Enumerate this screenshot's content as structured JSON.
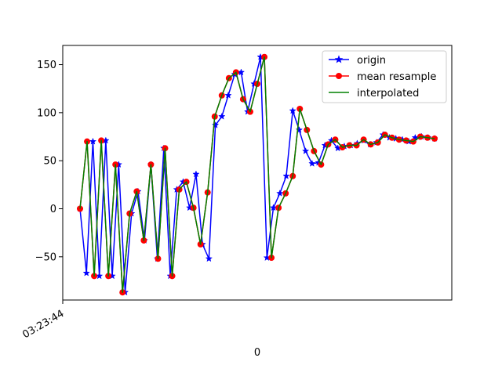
{
  "chart_data": {
    "type": "line",
    "title": "",
    "xlabel": "0",
    "ylabel": "",
    "x_tick_labels": [
      "03:23:44"
    ],
    "x_range_samples": [
      0,
      55
    ],
    "ylim": [
      -95,
      170
    ],
    "y_ticks": [
      -50,
      0,
      50,
      100,
      150
    ],
    "grid": false,
    "legend_placement": "top-right",
    "series": [
      {
        "name": "origin",
        "color": "#0000ff",
        "marker": "star",
        "values": [
          0,
          -67,
          70,
          -70,
          71,
          -70,
          46,
          -87,
          -5,
          18,
          -33,
          46,
          -52,
          63,
          -70,
          20,
          28,
          1,
          36,
          -37,
          -52,
          87,
          96,
          118,
          140,
          142,
          101,
          130,
          158,
          -51,
          1,
          16,
          34,
          102,
          82,
          60,
          47,
          48,
          66,
          71,
          63,
          65,
          66,
          68,
          71,
          67,
          69,
          77,
          74,
          73,
          72,
          70,
          74,
          75,
          74,
          73
        ]
      },
      {
        "name": "mean resample",
        "color": "#ff0000",
        "marker": "circle",
        "values": [
          0,
          70,
          -70,
          71,
          -70,
          46,
          -87,
          -5,
          18,
          -33,
          46,
          -52,
          63,
          -70,
          20,
          28,
          1,
          -37,
          17,
          96,
          118,
          136,
          142,
          114,
          101,
          130,
          158,
          -51,
          1,
          16,
          34,
          104,
          82,
          60,
          46,
          67,
          72,
          64,
          66,
          66,
          72,
          67,
          69,
          77,
          74,
          72,
          71,
          70,
          75,
          74,
          73
        ]
      },
      {
        "name": "interpolated",
        "color": "#008000",
        "marker": "none",
        "values": [
          0,
          70,
          -70,
          71,
          -70,
          46,
          -87,
          -5,
          18,
          -33,
          46,
          -52,
          63,
          -70,
          20,
          28,
          1,
          -37,
          17,
          96,
          118,
          136,
          142,
          114,
          101,
          130,
          158,
          -51,
          1,
          16,
          34,
          104,
          82,
          60,
          46,
          67,
          72,
          64,
          66,
          66,
          72,
          67,
          69,
          77,
          74,
          72,
          71,
          70,
          75,
          74,
          73
        ]
      }
    ]
  }
}
